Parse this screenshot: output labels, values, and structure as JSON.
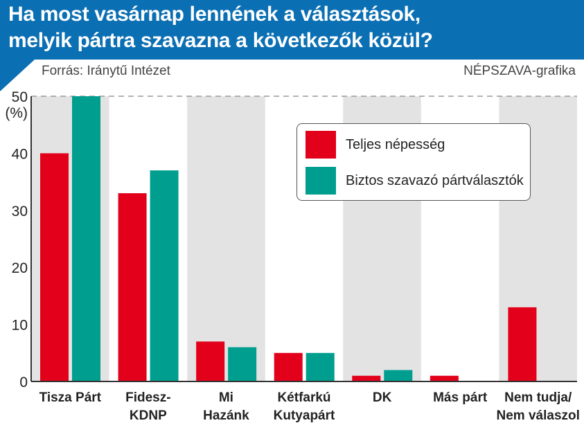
{
  "title_lines": [
    "Ha most vasárnap lennének a választások,",
    "melyik pártra szavazna a következők közül?"
  ],
  "source": "Forrás: Iránytű Intézet",
  "credit": "NÉPSZAVA-grafika",
  "chart_data": {
    "type": "bar",
    "title": "Ha most vasárnap lennének a választások, melyik pártra szavazna a következők közül?",
    "ylabel": "(%)",
    "ylim": [
      0,
      50
    ],
    "yticks": [
      0,
      10,
      20,
      30,
      40,
      50
    ],
    "categories": [
      [
        "Tisza Párt"
      ],
      [
        "Fidesz-",
        "KDNP"
      ],
      [
        "Mi",
        "Hazánk"
      ],
      [
        "Kétfarkú",
        "Kutyapárt"
      ],
      [
        "DK"
      ],
      [
        "Más párt"
      ],
      [
        "Nem tudja/",
        "Nem válaszol"
      ]
    ],
    "series": [
      {
        "name": "Teljes népesség",
        "color": "#e2001a",
        "values": [
          40,
          33,
          7,
          5,
          1,
          1,
          13
        ]
      },
      {
        "name": "Biztos szavazó pártválasztók",
        "color": "#009e8e",
        "values": [
          50,
          37,
          6,
          5,
          2,
          0,
          0
        ]
      }
    ],
    "legend": "top-right",
    "band_color": "#e3e3e3"
  }
}
